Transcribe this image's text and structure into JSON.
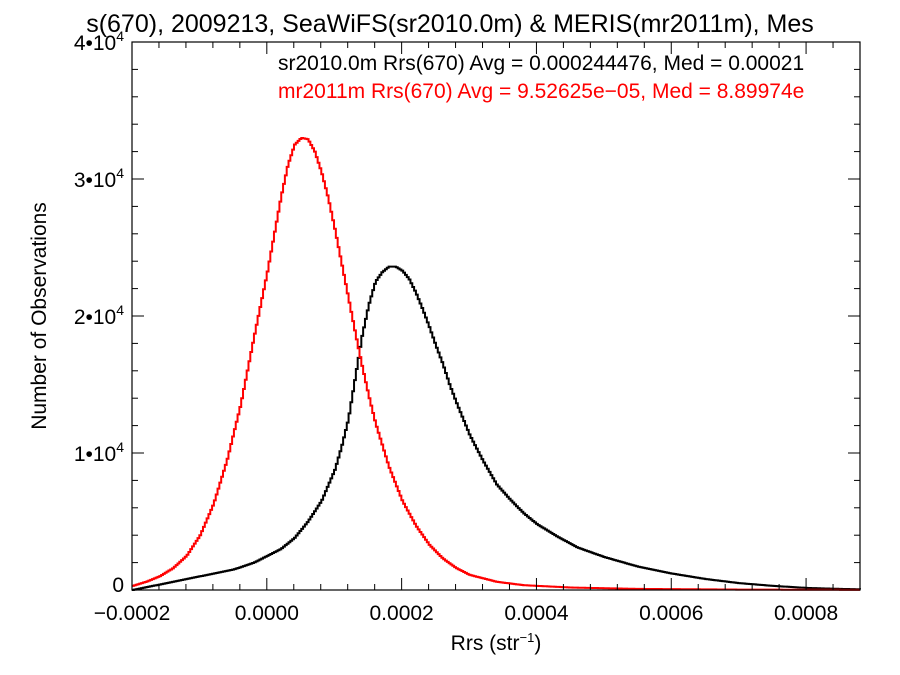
{
  "chart_data": {
    "type": "line",
    "title": "s(670), 2009213, SeaWiFS(sr2010.0m) & MERIS(mr2011m), Mes",
    "xlabel": "Rrs (str",
    "xlabel_sup": "−1",
    "xlabel_suffix": ")",
    "ylabel": "Number of Observations",
    "xlim": [
      -0.0002,
      0.00088
    ],
    "ylim": [
      0,
      40000
    ],
    "x_ticks": [
      {
        "value": -0.0002,
        "label": "−0.0002"
      },
      {
        "value": 0.0,
        "label": "0.0000"
      },
      {
        "value": 0.0002,
        "label": "0.0002"
      },
      {
        "value": 0.0004,
        "label": "0.0004"
      },
      {
        "value": 0.0006,
        "label": "0.0006"
      },
      {
        "value": 0.0008,
        "label": "0.0008"
      }
    ],
    "y_ticks": [
      {
        "value": 0,
        "mantissa": "0",
        "exp": ""
      },
      {
        "value": 10000,
        "mantissa": "1•10",
        "exp": "4"
      },
      {
        "value": 20000,
        "mantissa": "2•10",
        "exp": "4"
      },
      {
        "value": 30000,
        "mantissa": "3•10",
        "exp": "4"
      },
      {
        "value": 40000,
        "mantissa": "4•10",
        "exp": "4"
      }
    ],
    "grid": false,
    "legend_position": "top-right",
    "series": [
      {
        "name": "sr2010.0m Rrs(670) Avg = 0.000244476, Med = 0.00021",
        "color": "#000000",
        "x": [
          -0.0002,
          -0.00017,
          -0.00014,
          -0.00011,
          -8e-05,
          -5e-05,
          -2e-05,
          0.0,
          2e-05,
          4e-05,
          6e-05,
          8e-05,
          0.0001,
          0.00011,
          0.00012,
          0.00013,
          0.00014,
          0.00015,
          0.00016,
          0.00017,
          0.00018,
          0.00019,
          0.0002,
          0.00021,
          0.00022,
          0.00023,
          0.00024,
          0.00025,
          0.00026,
          0.00027,
          0.00028,
          0.0003,
          0.00032,
          0.00034,
          0.00036,
          0.00038,
          0.0004,
          0.00043,
          0.00046,
          0.0005,
          0.00055,
          0.0006,
          0.00065,
          0.0007,
          0.00075,
          0.0008,
          0.00085,
          0.00088
        ],
        "y": [
          0,
          300,
          600,
          900,
          1200,
          1500,
          2000,
          2500,
          3000,
          3800,
          5000,
          6500,
          8800,
          10500,
          12500,
          15500,
          18500,
          20800,
          22500,
          23200,
          23600,
          23600,
          23300,
          22700,
          21700,
          20500,
          19200,
          17800,
          16500,
          15000,
          13700,
          11300,
          9400,
          7700,
          6600,
          5600,
          4800,
          3900,
          3100,
          2400,
          1700,
          1200,
          800,
          500,
          300,
          150,
          80,
          50
        ]
      },
      {
        "name": "mr2011m Rrs(670) Avg = 9.52625e−05, Med = 8.89974e",
        "color": "#ff0000",
        "x": [
          -0.0002,
          -0.00018,
          -0.00016,
          -0.00014,
          -0.00012,
          -0.0001,
          -8e-05,
          -6e-05,
          -4e-05,
          -2e-05,
          0.0,
          1e-05,
          2e-05,
          3e-05,
          4e-05,
          5e-05,
          6e-05,
          7e-05,
          8e-05,
          9e-05,
          0.0001,
          0.00011,
          0.00012,
          0.00013,
          0.00014,
          0.00015,
          0.00016,
          0.00018,
          0.0002,
          0.00022,
          0.00024,
          0.00026,
          0.00028,
          0.0003,
          0.00034,
          0.00038,
          0.00045,
          0.00055,
          0.0007,
          0.00088
        ],
        "y": [
          300,
          600,
          1000,
          1600,
          2500,
          4000,
          6300,
          9500,
          13500,
          18500,
          23300,
          26000,
          28700,
          31000,
          32500,
          33000,
          32900,
          32000,
          30500,
          28600,
          26300,
          23800,
          21300,
          18800,
          16400,
          14200,
          12200,
          9000,
          6500,
          4700,
          3300,
          2300,
          1600,
          1100,
          600,
          350,
          180,
          80,
          30,
          10
        ]
      }
    ]
  }
}
